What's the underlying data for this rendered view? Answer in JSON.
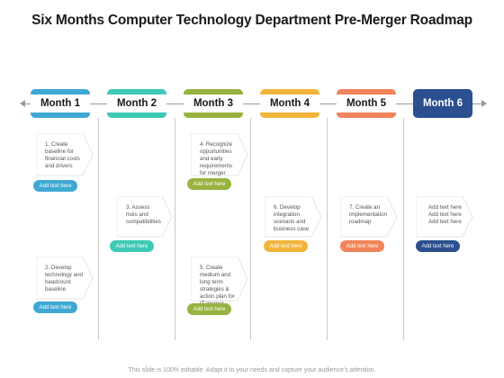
{
  "title": "Six Months Computer Technology Department Pre-Merger Roadmap",
  "months": [
    {
      "label": "Month 1",
      "color": "#3fa9d3"
    },
    {
      "label": "Month 2",
      "color": "#3ec9b6"
    },
    {
      "label": "Month 3",
      "color": "#97b33f"
    },
    {
      "label": "Month 4",
      "color": "#f2b53c"
    },
    {
      "label": "Month 5",
      "color": "#f0845a"
    },
    {
      "label": "Month 6",
      "color": "#2b4f8f"
    }
  ],
  "cards": {
    "m1_top": "1. Create baseline for financial costs and drivers",
    "m1_bottom": "2. Develop technology and headcount baseline",
    "m2_mid": "3. Assess risks and compatibilities",
    "m3_top": "4. Recognize opportunities and early requirements for merger",
    "m3_bottom": "5. Create medium and long term strategies & action plan for IT merger",
    "m4_mid": "6. Develop integration scenario and business case",
    "m5_mid": "7. Create an implementation roadmap",
    "m6_mid": "Add text here Add text here Add text here"
  },
  "pill_label": "Add text here",
  "footer": "This slide is 100% editable. Adapt it to your needs and capture your audience's attention."
}
